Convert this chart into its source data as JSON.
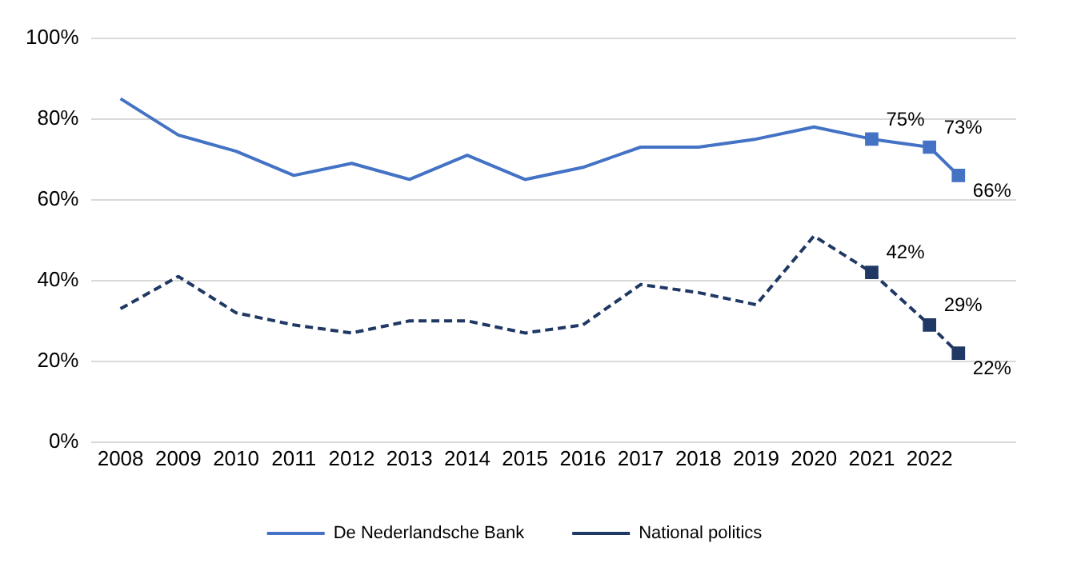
{
  "chart_data": {
    "type": "line",
    "x": [
      2008,
      2009,
      2010,
      2011,
      2012,
      2013,
      2014,
      2015,
      2016,
      2017,
      2018,
      2019,
      2020,
      2021,
      2022,
      2022.5
    ],
    "series": [
      {
        "name": "De Nederlandsche Bank",
        "color": "#4472c4",
        "line_style": "solid",
        "values": [
          85,
          76,
          72,
          66,
          69,
          65,
          71,
          65,
          68,
          73,
          73,
          75,
          78,
          75,
          73,
          66
        ],
        "value_labels": [
          null,
          null,
          null,
          null,
          null,
          null,
          null,
          null,
          null,
          null,
          null,
          null,
          null,
          "75%",
          "73%",
          "66%"
        ]
      },
      {
        "name": "National politics",
        "color": "#203864",
        "line_style": "dashed",
        "values": [
          33,
          41,
          32,
          29,
          27,
          30,
          30,
          27,
          29,
          39,
          37,
          34,
          51,
          42,
          29,
          22
        ],
        "value_labels": [
          null,
          null,
          null,
          null,
          null,
          null,
          null,
          null,
          null,
          null,
          null,
          null,
          null,
          "42%",
          "29%",
          "22%"
        ]
      }
    ],
    "xlim": [
      2007.5,
      2023.5
    ],
    "xticks": [
      2008,
      2009,
      2010,
      2011,
      2012,
      2013,
      2014,
      2015,
      2016,
      2017,
      2018,
      2019,
      2020,
      2021,
      2022
    ],
    "ylim": [
      0,
      100
    ],
    "yticks": [
      {
        "value": 0,
        "label": "0%"
      },
      {
        "value": 20,
        "label": "20%"
      },
      {
        "value": 40,
        "label": "40%"
      },
      {
        "value": 60,
        "label": "60%"
      },
      {
        "value": 80,
        "label": "80%"
      },
      {
        "value": 100,
        "label": "100%"
      }
    ],
    "grid": "y",
    "legend": "bottom"
  }
}
